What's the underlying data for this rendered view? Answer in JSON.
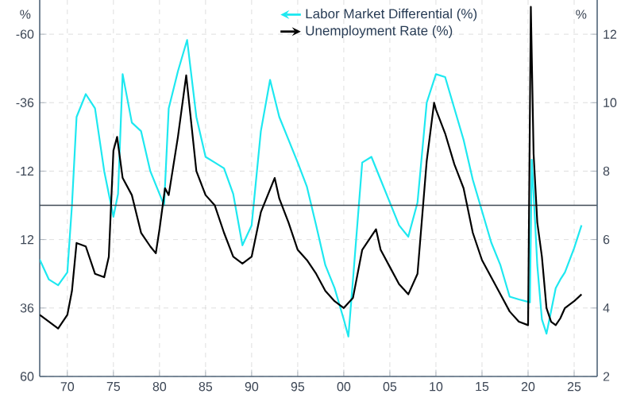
{
  "chart_data": {
    "type": "line",
    "ylabel": "%",
    "y2label": "%",
    "x": [
      1967,
      1968,
      1969,
      1970,
      1970.5,
      1971,
      1972,
      1973,
      1974,
      1975,
      1975.5,
      1976,
      1977,
      1978,
      1979,
      1980,
      1980.5,
      1981,
      1982,
      1983,
      1984,
      1985,
      1986,
      1987,
      1988,
      1989,
      1990,
      1991,
      1992,
      1993,
      1994,
      1995,
      1996,
      1997,
      1998,
      1999,
      2000,
      2000.5,
      2001,
      2002,
      2003,
      2004,
      2005,
      2006,
      2007,
      2008,
      2009,
      2010,
      2011,
      2012,
      2013,
      2014,
      2015,
      2016,
      2017,
      2018,
      2019,
      2020.2,
      2020.4,
      2020.7,
      2021,
      2021.5,
      2022,
      2022.5,
      2023,
      2023.5,
      2024,
      2025,
      2025.8
    ],
    "series": [
      {
        "name": "Labor Market Differential (%)",
        "color": "#1ee8f0",
        "axis": "y",
        "values": [
          19,
          26,
          28,
          23.5,
          0,
          -31,
          -39,
          -34,
          -12,
          4,
          -4,
          -46,
          -29,
          -26,
          -12,
          -4,
          0,
          -34,
          -47,
          -58,
          -31,
          -17,
          -15,
          -13,
          -4,
          14,
          7,
          -26,
          -44,
          -31,
          -23,
          -15,
          -6.5,
          7,
          21,
          29,
          40,
          46,
          26,
          -15,
          -17,
          -9,
          -1,
          7,
          11,
          -1,
          -36,
          -46,
          -45,
          -34,
          -23,
          -9,
          2,
          13,
          21,
          32,
          33,
          34,
          -16,
          2,
          21,
          40,
          45,
          37,
          29,
          26,
          23.5,
          15,
          7
        ]
      },
      {
        "name": "Unemployment Rate (%)",
        "color": "#000000",
        "axis": "y2",
        "x": [
          1967,
          1968,
          1969,
          1970,
          1970.5,
          1971,
          1972,
          1973,
          1974,
          1974.5,
          1975,
          1975.4,
          1976,
          1977,
          1978,
          1979,
          1979.6,
          1980,
          1980.6,
          1981,
          1982,
          1982.9,
          1984,
          1985,
          1986,
          1987,
          1988,
          1989,
          1990,
          1991,
          1992.5,
          1993,
          1994,
          1995,
          1996,
          1997,
          1998,
          1999,
          2000,
          2001,
          2002,
          2003.5,
          2004,
          2005,
          2006,
          2007,
          2008,
          2009,
          2009.8,
          2010,
          2011,
          2012,
          2013,
          2014,
          2015,
          2016,
          2017,
          2018,
          2019,
          2020,
          2020.3,
          2020.6,
          2021,
          2021.5,
          2022,
          2022.5,
          2023,
          2023.5,
          2024,
          2025,
          2025.8
        ],
        "values": [
          3.8,
          3.6,
          3.4,
          3.8,
          4.5,
          5.9,
          5.8,
          5.0,
          4.9,
          5.5,
          8.6,
          9.0,
          7.8,
          7.3,
          6.2,
          5.8,
          5.6,
          6.3,
          7.5,
          7.3,
          9.0,
          10.8,
          8.0,
          7.3,
          7.0,
          6.2,
          5.5,
          5.3,
          5.5,
          6.8,
          7.8,
          7.2,
          6.5,
          5.7,
          5.4,
          5.0,
          4.5,
          4.2,
          4.0,
          4.3,
          5.7,
          6.3,
          5.7,
          5.2,
          4.7,
          4.4,
          5.0,
          8.3,
          10.0,
          9.8,
          9.1,
          8.2,
          7.5,
          6.2,
          5.4,
          4.9,
          4.4,
          3.9,
          3.6,
          3.5,
          12.8,
          8.5,
          6.5,
          5.5,
          4.0,
          3.6,
          3.5,
          3.7,
          4.0,
          4.2,
          4.4
        ]
      }
    ],
    "xlim": [
      1967,
      2027.5
    ],
    "xticks": [
      {
        "value": 1970,
        "label": "70"
      },
      {
        "value": 1975,
        "label": "75"
      },
      {
        "value": 1980,
        "label": "80"
      },
      {
        "value": 1985,
        "label": "85"
      },
      {
        "value": 1990,
        "label": "90"
      },
      {
        "value": 1995,
        "label": "95"
      },
      {
        "value": 2000,
        "label": "00"
      },
      {
        "value": 2005,
        "label": "05"
      },
      {
        "value": 2010,
        "label": "10"
      },
      {
        "value": 2015,
        "label": "15"
      },
      {
        "value": 2020,
        "label": "20"
      },
      {
        "value": 2025,
        "label": "25"
      }
    ],
    "ylim": [
      60,
      -72
    ],
    "yticks": [
      -60,
      -36,
      -12,
      12,
      36,
      60
    ],
    "y2lim": [
      2,
      13
    ],
    "y2ticks": [
      12,
      10,
      8,
      6,
      4,
      2
    ],
    "ref_lines": [
      {
        "axis": "y",
        "value": 0,
        "color": "#404a55"
      }
    ],
    "grid": true,
    "legend": "top right",
    "marker": "none",
    "line_style": "solid"
  }
}
